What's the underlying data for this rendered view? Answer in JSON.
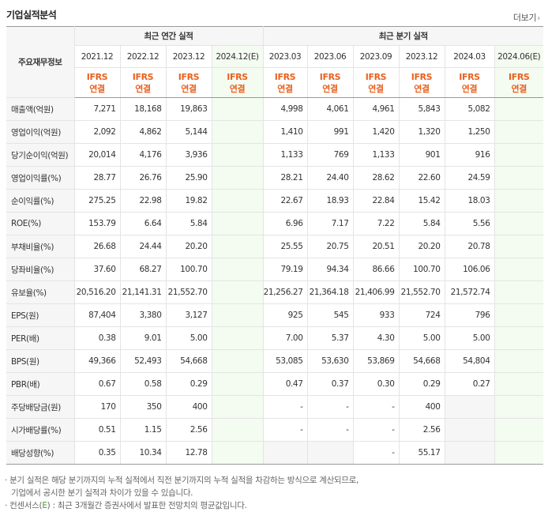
{
  "header": {
    "title": "기업실적분석",
    "more_label": "더보기",
    "more_arrow": "›"
  },
  "table": {
    "corner_label": "주요재무정보",
    "annual_group_label": "최근 연간 실적",
    "quarter_group_label": "최근 분기 실적",
    "periods": [
      {
        "label": "2021.12",
        "est": false
      },
      {
        "label": "2022.12",
        "est": false
      },
      {
        "label": "2023.12",
        "est": false
      },
      {
        "label": "2024.12(E)",
        "est": true
      },
      {
        "label": "2023.03",
        "est": false
      },
      {
        "label": "2023.06",
        "est": false
      },
      {
        "label": "2023.09",
        "est": false
      },
      {
        "label": "2023.12",
        "est": false
      },
      {
        "label": "2024.03",
        "est": false
      },
      {
        "label": "2024.06(E)",
        "est": true
      }
    ],
    "standard_top": "IFRS",
    "standard_bottom": "연결",
    "rows": [
      {
        "label": "매출액(억원)",
        "values": [
          "7,271",
          "18,168",
          "19,863",
          "",
          "4,998",
          "4,061",
          "4,961",
          "5,843",
          "5,082",
          ""
        ]
      },
      {
        "label": "영업이익(억원)",
        "values": [
          "2,092",
          "4,862",
          "5,144",
          "",
          "1,410",
          "991",
          "1,420",
          "1,320",
          "1,250",
          ""
        ]
      },
      {
        "label": "당기순이익(억원)",
        "values": [
          "20,014",
          "4,176",
          "3,936",
          "",
          "1,133",
          "769",
          "1,133",
          "901",
          "916",
          ""
        ]
      },
      {
        "label": "영업이익률(%)",
        "values": [
          "28.77",
          "26.76",
          "25.90",
          "",
          "28.21",
          "24.40",
          "28.62",
          "22.60",
          "24.59",
          ""
        ]
      },
      {
        "label": "순이익률(%)",
        "values": [
          "275.25",
          "22.98",
          "19.82",
          "",
          "22.67",
          "18.93",
          "22.84",
          "15.42",
          "18.03",
          ""
        ]
      },
      {
        "label": "ROE(%)",
        "values": [
          "153.79",
          "6.64",
          "5.84",
          "",
          "6.96",
          "7.17",
          "7.22",
          "5.84",
          "5.56",
          ""
        ]
      },
      {
        "label": "부채비율(%)",
        "values": [
          "26.68",
          "24.44",
          "20.20",
          "",
          "25.55",
          "20.75",
          "20.51",
          "20.20",
          "20.78",
          ""
        ]
      },
      {
        "label": "당좌비율(%)",
        "values": [
          "37.60",
          "68.27",
          "100.70",
          "",
          "79.19",
          "94.34",
          "86.66",
          "100.70",
          "106.06",
          ""
        ]
      },
      {
        "label": "유보율(%)",
        "values": [
          "20,516.20",
          "21,141.31",
          "21,552.70",
          "",
          "21,256.27",
          "21,364.18",
          "21,406.99",
          "21,552.70",
          "21,572.74",
          ""
        ]
      },
      {
        "label": "EPS(원)",
        "values": [
          "87,404",
          "3,380",
          "3,127",
          "",
          "925",
          "545",
          "933",
          "724",
          "796",
          ""
        ]
      },
      {
        "label": "PER(배)",
        "values": [
          "0.38",
          "9.01",
          "5.00",
          "",
          "7.00",
          "5.37",
          "4.30",
          "5.00",
          "5.00",
          ""
        ]
      },
      {
        "label": "BPS(원)",
        "values": [
          "49,366",
          "52,493",
          "54,668",
          "",
          "53,085",
          "53,630",
          "53,869",
          "54,668",
          "54,804",
          ""
        ]
      },
      {
        "label": "PBR(배)",
        "values": [
          "0.67",
          "0.58",
          "0.29",
          "",
          "0.47",
          "0.37",
          "0.30",
          "0.29",
          "0.27",
          ""
        ]
      },
      {
        "label": "주당배당금(원)",
        "values": [
          "170",
          "350",
          "400",
          "",
          "-",
          "-",
          "-",
          "400",
          "",
          ""
        ]
      },
      {
        "label": "시가배당률(%)",
        "values": [
          "0.51",
          "1.15",
          "2.56",
          "",
          "-",
          "-",
          "-",
          "2.56",
          "",
          ""
        ]
      },
      {
        "label": "배당성향(%)",
        "values": [
          "0.35",
          "10.34",
          "12.78",
          "",
          "",
          "",
          "-",
          "55.17",
          "",
          ""
        ]
      }
    ]
  },
  "notes": {
    "line1": "· 분기 실적은 해당 분기까지의 누적 실적에서 직전 분기까지의 누적 실적을 차감하는 방식으로 계산되므로,",
    "line2": "기업에서 공시한 분기 실적과 차이가 있을 수 있습니다.",
    "line3_prefix": "· 컨센서스(",
    "line3_mark": "E",
    "line3_suffix": ") : 최근 3개월간 증권사에서 발표한 전망치의 평균값입니다."
  }
}
